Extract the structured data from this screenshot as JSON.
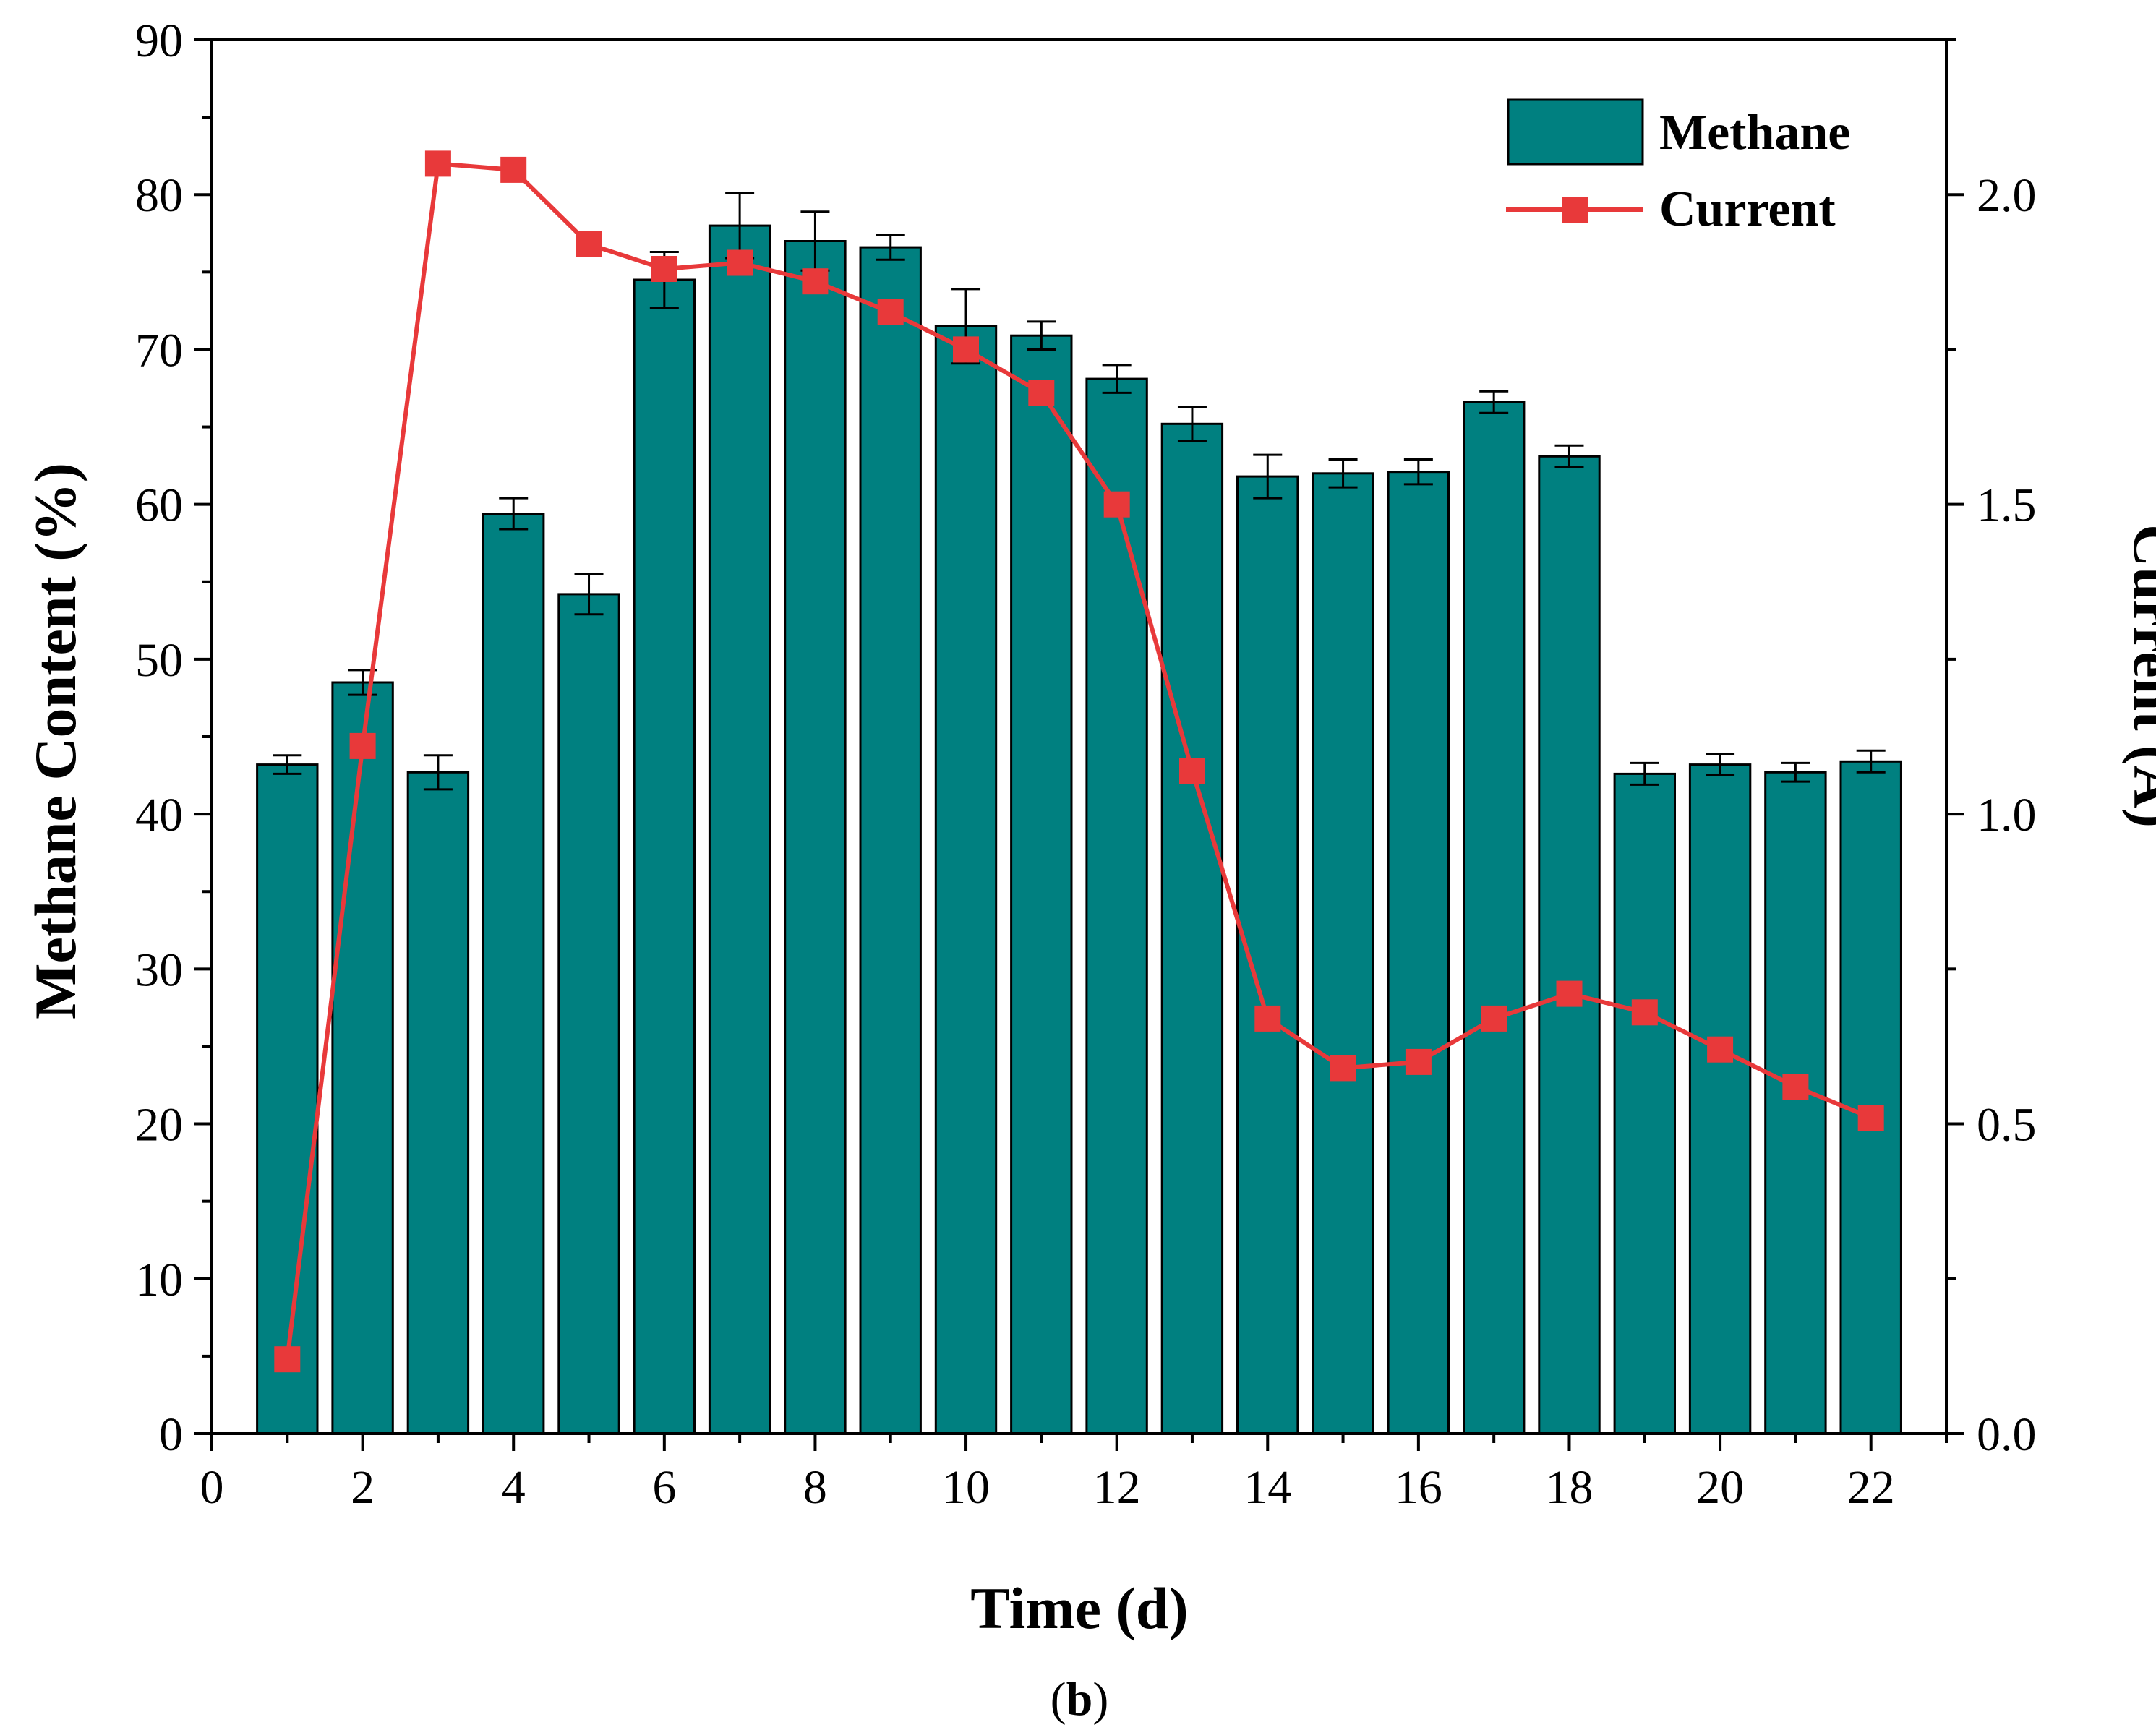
{
  "colors": {
    "bar_fill": "#008080",
    "bar_stroke": "#000000",
    "line": "#E8393A",
    "marker": "#E8393A",
    "axis": "#000000"
  },
  "caption": {
    "prefix": "(",
    "letter": "b",
    "suffix": ")"
  },
  "chart_data": {
    "type": "bar",
    "combo": "bar-line-dual-axis",
    "xlabel": "Time (d)",
    "ylabel_left": "Methane Content (%)",
    "ylabel_right": "Current (A)",
    "xlim": [
      0,
      23
    ],
    "ylim_left": [
      0,
      90
    ],
    "ylim_right": [
      0,
      2.25
    ],
    "xticks": [
      0,
      2,
      4,
      6,
      8,
      10,
      12,
      14,
      16,
      18,
      20,
      22
    ],
    "xtick_labels": [
      "0",
      "2",
      "4",
      "6",
      "8",
      "10",
      "12",
      "14",
      "16",
      "18",
      "20",
      "22"
    ],
    "yticks_left": [
      0,
      10,
      20,
      30,
      40,
      50,
      60,
      70,
      80,
      90
    ],
    "ytick_labels_left": [
      "0",
      "10",
      "20",
      "30",
      "40",
      "50",
      "60",
      "70",
      "80",
      "90"
    ],
    "yticks_right": [
      0,
      0.5,
      1.0,
      1.5,
      2.0
    ],
    "ytick_labels_right": [
      "0.0",
      "0.5",
      "1.0",
      "1.5",
      "2.0"
    ],
    "legend": {
      "position": "top-right",
      "entries": [
        "Methane",
        "Current"
      ]
    },
    "x": [
      1,
      2,
      3,
      4,
      5,
      6,
      7,
      8,
      9,
      10,
      11,
      12,
      13,
      14,
      15,
      16,
      17,
      18,
      19,
      20,
      21,
      22
    ],
    "series": [
      {
        "name": "Methane",
        "type": "bar",
        "axis": "left",
        "values": [
          43.2,
          48.5,
          42.7,
          59.4,
          54.2,
          74.5,
          78.0,
          77.0,
          76.6,
          71.5,
          70.9,
          68.1,
          65.2,
          61.8,
          62.0,
          62.1,
          66.6,
          63.1,
          42.6,
          43.2,
          42.7,
          43.4
        ],
        "errors": [
          0.6,
          0.8,
          1.1,
          1.0,
          1.3,
          1.8,
          2.1,
          1.9,
          0.8,
          2.4,
          0.9,
          0.9,
          1.1,
          1.4,
          0.9,
          0.8,
          0.7,
          0.7,
          0.7,
          0.7,
          0.6,
          0.7
        ]
      },
      {
        "name": "Current",
        "type": "line",
        "axis": "right",
        "values": [
          0.12,
          1.11,
          2.05,
          2.04,
          1.92,
          1.88,
          1.89,
          1.86,
          1.81,
          1.75,
          1.68,
          1.5,
          1.07,
          0.67,
          0.59,
          0.6,
          0.67,
          0.71,
          0.68,
          0.62,
          0.56,
          0.51
        ]
      }
    ]
  }
}
